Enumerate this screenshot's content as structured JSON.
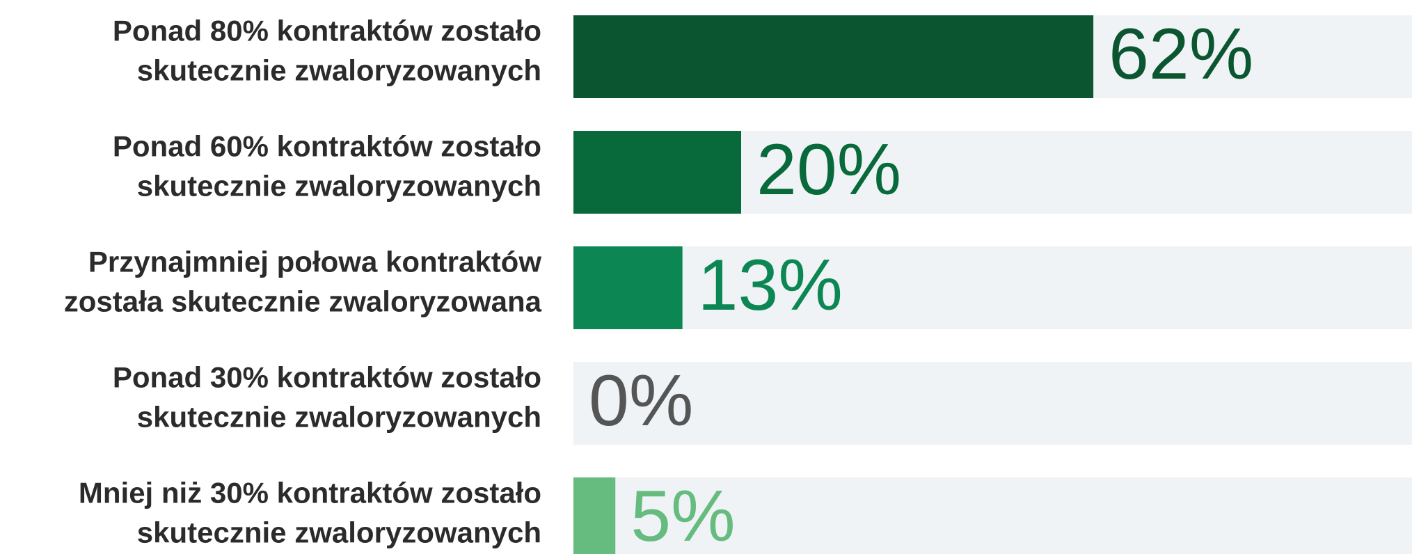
{
  "chart_data": {
    "type": "bar",
    "orientation": "horizontal",
    "categories": [
      [
        "Ponad 80% kontraktów zostało",
        "skutecznie zwaloryzowanych"
      ],
      [
        "Ponad 60% kontraktów zostało",
        "skutecznie zwaloryzowanych"
      ],
      [
        "Przynajmniej połowa kontraktów",
        "została skutecznie zwaloryzowana"
      ],
      [
        "Ponad 30% kontraktów zostało",
        "skutecznie zwaloryzowanych"
      ],
      [
        "Mniej niż 30% kontraktów zostało",
        "skutecznie zwaloryzowanych"
      ]
    ],
    "values": [
      62,
      20,
      13,
      0,
      5
    ],
    "value_labels": [
      "62%",
      "20%",
      "13%",
      "0%",
      "5%"
    ],
    "colors": [
      "#0b5630",
      "#08693a",
      "#0c8754",
      "#555555",
      "#66bb7f"
    ],
    "track_color": "#eff3f6",
    "xlim": [
      0,
      100
    ]
  }
}
